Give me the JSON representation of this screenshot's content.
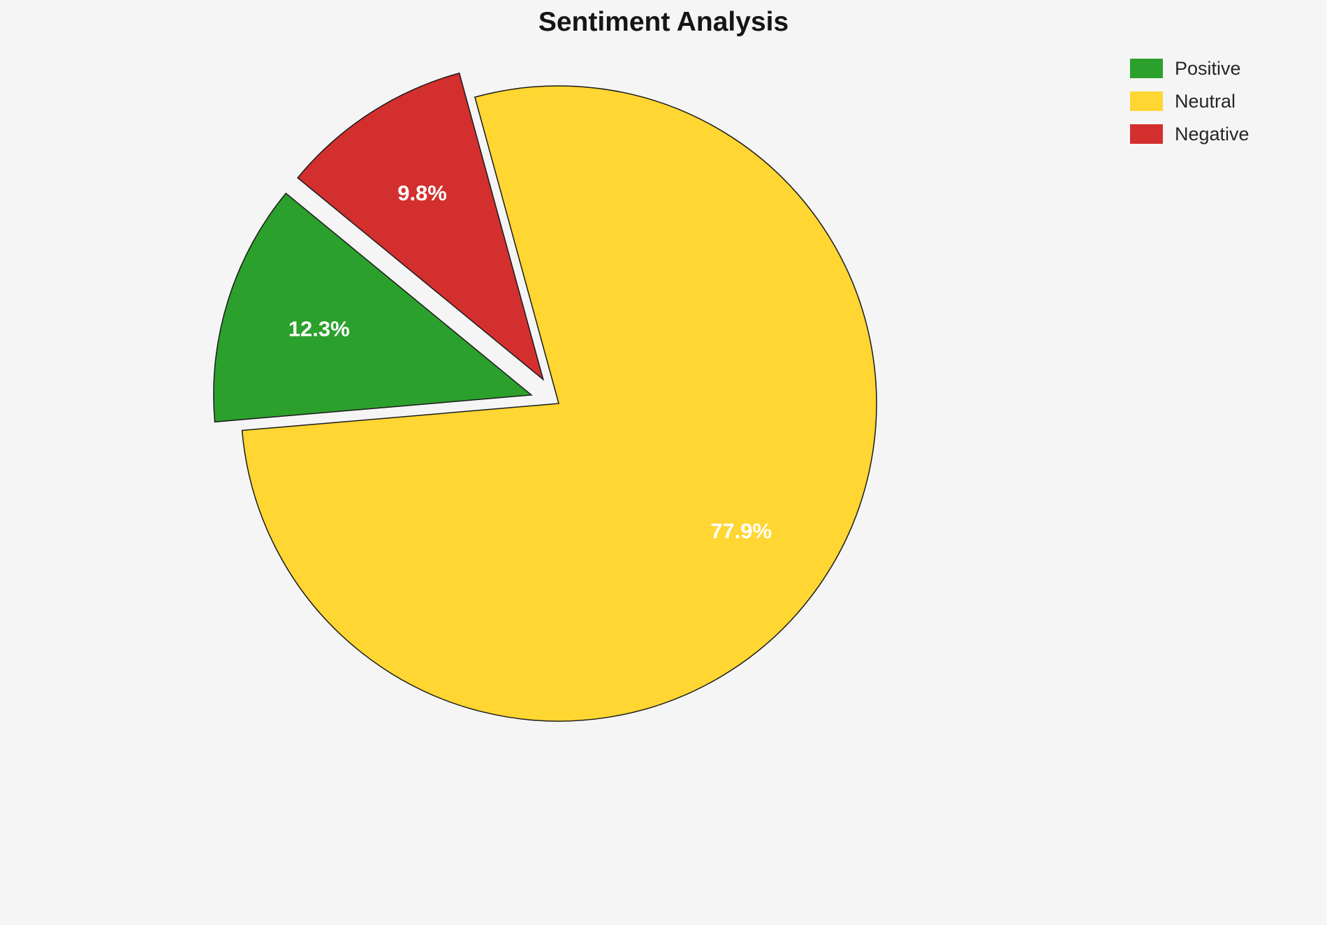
{
  "page": {
    "background": "#f5f5f5"
  },
  "chart_data": {
    "type": "pie",
    "title": "Sentiment Analysis",
    "labels": [
      "Positive",
      "Neutral",
      "Negative"
    ],
    "values": [
      12.3,
      77.9,
      9.8
    ],
    "percent_labels": [
      "12.3%",
      "77.9%",
      "9.8%"
    ],
    "colors": {
      "positive": "#2ca02c",
      "neutral": "#ffd632",
      "negative": "#d32f2f"
    },
    "legend_position": "top-right",
    "start_angle": 105.3,
    "direction": "counterclockwise",
    "stroke_color": "#1a1a1a",
    "slices": [
      {
        "label": "Negative",
        "value": 9.8,
        "pct_label": "9.8%",
        "color": "#d32f2f",
        "explode": 0.09
      },
      {
        "label": "Positive",
        "value": 12.3,
        "pct_label": "12.3%",
        "color": "#2ca02c",
        "explode": 0.09
      },
      {
        "label": "Neutral",
        "value": 77.9,
        "pct_label": "77.9%",
        "color": "#ffd632",
        "explode": 0
      }
    ]
  },
  "legend": {
    "items": [
      {
        "label": "Positive",
        "color": "#2ca02c"
      },
      {
        "label": "Neutral",
        "color": "#ffd632"
      },
      {
        "label": "Negative",
        "color": "#d32f2f"
      }
    ]
  }
}
